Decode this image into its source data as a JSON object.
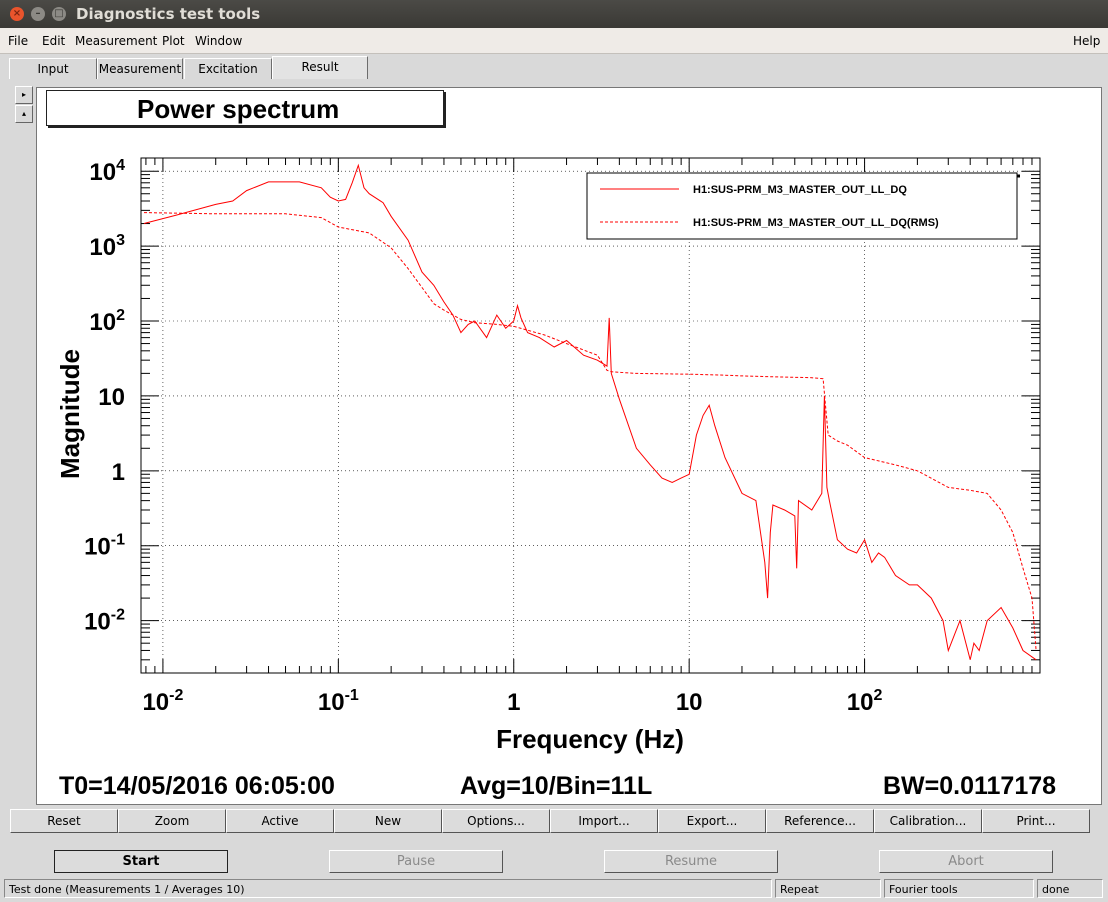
{
  "window": {
    "title": "Diagnostics test tools"
  },
  "menu": {
    "file": "File",
    "edit": "Edit",
    "measurement": "Measurement",
    "plot": "Plot",
    "window": "Window",
    "help": "Help"
  },
  "tabs": [
    "Input",
    "Measurement",
    "Excitation",
    "Result"
  ],
  "panel": {
    "title": "Power spectrum",
    "t0": "T0=14/05/2016 06:05:00",
    "avg": "Avg=10/Bin=11L",
    "bw": "BW=0.0117178"
  },
  "chart_data": {
    "type": "line",
    "xlabel": "Frequency (Hz)",
    "ylabel": "Magnitude",
    "xscale": "log",
    "yscale": "log",
    "xlim": [
      0.0075,
      1000
    ],
    "ylim": [
      0.002,
      15000
    ],
    "grid": true,
    "legend_position": "top-right",
    "x_ticks": [
      {
        "base": "10",
        "exp": "-2",
        "value": 0.01
      },
      {
        "base": "10",
        "exp": "-1",
        "value": 0.1
      },
      {
        "base": "1",
        "exp": "",
        "value": 1
      },
      {
        "base": "10",
        "exp": "",
        "value": 10
      },
      {
        "base": "10",
        "exp": "2",
        "value": 100
      }
    ],
    "y_ticks": [
      {
        "base": "10",
        "exp": "4",
        "value": 10000
      },
      {
        "base": "10",
        "exp": "3",
        "value": 1000
      },
      {
        "base": "10",
        "exp": "2",
        "value": 100
      },
      {
        "base": "10",
        "exp": "",
        "value": 10
      },
      {
        "base": "1",
        "exp": "",
        "value": 1
      },
      {
        "base": "10",
        "exp": "-1",
        "value": 0.1
      },
      {
        "base": "10",
        "exp": "-2",
        "value": 0.01
      }
    ],
    "series": [
      {
        "name": "H1:SUS-PRM_M3_MASTER_OUT_LL_DQ",
        "style": "solid",
        "color": "#ff0000",
        "x": [
          0.0078,
          0.012,
          0.02,
          0.025,
          0.03,
          0.04,
          0.06,
          0.08,
          0.09,
          0.1,
          0.11,
          0.12,
          0.13,
          0.14,
          0.15,
          0.18,
          0.2,
          0.25,
          0.3,
          0.35,
          0.4,
          0.45,
          0.5,
          0.55,
          0.6,
          0.7,
          0.8,
          0.9,
          1.0,
          1.05,
          1.1,
          1.2,
          1.4,
          1.7,
          2.0,
          2.5,
          3.0,
          3.4,
          3.5,
          3.6,
          4.0,
          5.0,
          6.0,
          7.0,
          8.0,
          9.0,
          10.0,
          11.0,
          12.0,
          13.0,
          14.0,
          16.0,
          20.0,
          24.0,
          27.0,
          28.0,
          29.0,
          30.0,
          35.0,
          40.0,
          41.0,
          42.0,
          50.0,
          57.0,
          59.0,
          61.0,
          63.0,
          70.0,
          80.0,
          90.0,
          100.0,
          110.0,
          120.0,
          130.0,
          150.0,
          180.0,
          200.0,
          240.0,
          280.0,
          300.0,
          350.0,
          400.0,
          420.0,
          450.0,
          500.0,
          600.0,
          700.0,
          800.0,
          950.0
        ],
        "y": [
          2000,
          2600,
          3600,
          4000,
          5500,
          7200,
          7200,
          6000,
          4500,
          4000,
          4200,
          7000,
          12000,
          6000,
          5000,
          3800,
          2500,
          1200,
          450,
          300,
          180,
          120,
          70,
          90,
          100,
          60,
          120,
          80,
          100,
          160,
          110,
          70,
          60,
          45,
          55,
          35,
          30,
          25,
          110,
          20,
          9,
          2,
          1.2,
          0.8,
          0.7,
          0.8,
          0.9,
          3,
          5.5,
          7.5,
          4,
          1.5,
          0.5,
          0.4,
          0.06,
          0.02,
          0.15,
          0.35,
          0.3,
          0.25,
          0.05,
          0.4,
          0.3,
          0.5,
          10,
          0.6,
          0.4,
          0.12,
          0.09,
          0.08,
          0.12,
          0.06,
          0.08,
          0.07,
          0.04,
          0.03,
          0.03,
          0.02,
          0.01,
          0.004,
          0.01,
          0.003,
          0.005,
          0.004,
          0.01,
          0.015,
          0.008,
          0.004,
          0.003
        ]
      },
      {
        "name": "H1:SUS-PRM_M3_MASTER_OUT_LL_DQ(RMS)",
        "style": "dashed",
        "color": "#ff0000",
        "x": [
          0.0078,
          0.02,
          0.05,
          0.08,
          0.1,
          0.15,
          0.2,
          0.25,
          0.3,
          0.35,
          0.4,
          0.5,
          0.6,
          0.8,
          1.0,
          1.5,
          2.0,
          3.0,
          3.4,
          3.6,
          5.0,
          10.0,
          15.0,
          20.0,
          30.0,
          50.0,
          58.0,
          60.0,
          62.0,
          70.0,
          80.0,
          100.0,
          150.0,
          200.0,
          300.0,
          400.0,
          500.0,
          600.0,
          700.0,
          800.0,
          900.0,
          950.0
        ],
        "y": [
          2800,
          2700,
          2700,
          2400,
          1800,
          1500,
          950,
          500,
          280,
          170,
          140,
          105,
          95,
          90,
          85,
          65,
          50,
          35,
          22,
          21,
          20,
          19.5,
          19,
          18.5,
          18,
          17.5,
          17,
          7,
          3,
          2.5,
          2.2,
          1.5,
          1.2,
          1.0,
          0.6,
          0.55,
          0.5,
          0.3,
          0.15,
          0.05,
          0.02,
          0.004
        ]
      }
    ]
  },
  "toolbar": [
    "Reset",
    "Zoom",
    "Active",
    "New",
    "Options...",
    "Import...",
    "Export...",
    "Reference...",
    "Calibration...",
    "Print..."
  ],
  "actions": {
    "start": "Start",
    "pause": "Pause",
    "resume": "Resume",
    "abort": "Abort"
  },
  "status": {
    "message": "Test done (Measurements 1 / Averages 10)",
    "mode": "Repeat",
    "tool": "Fourier tools",
    "state": "done"
  },
  "side_icons": [
    "arrow-right-icon",
    "arrow-up-icon"
  ]
}
